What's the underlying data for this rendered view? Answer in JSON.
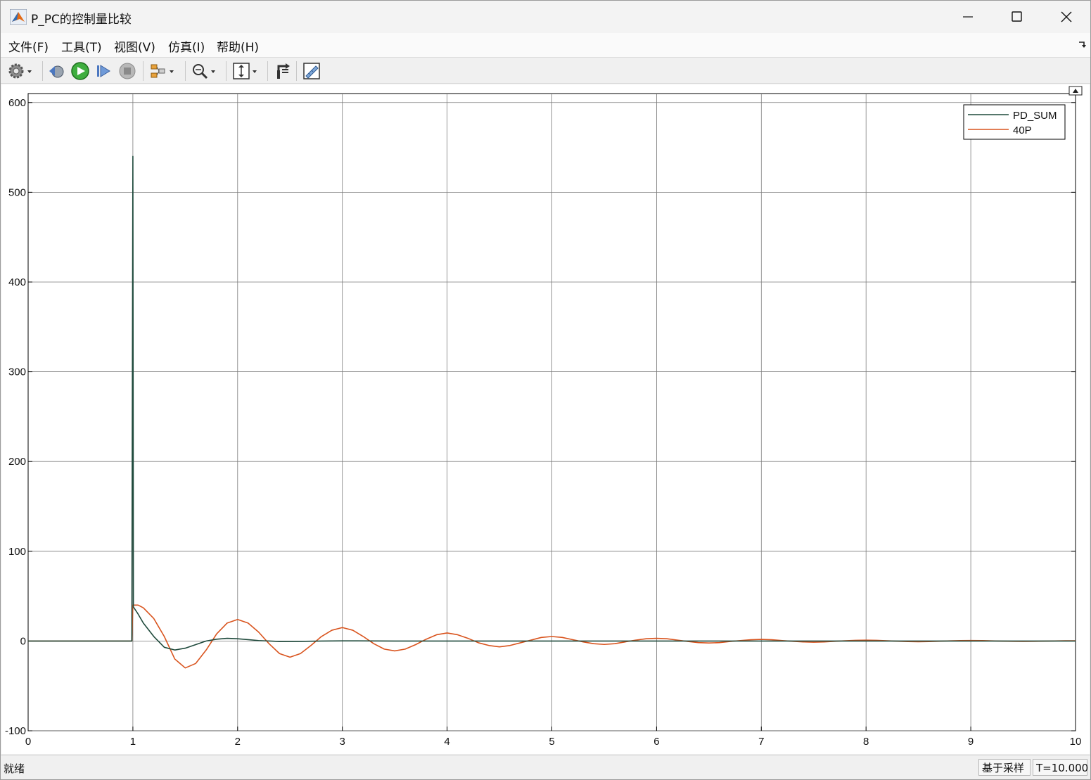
{
  "window": {
    "title": "P_PC的控制量比较",
    "minimize_glyph": "—",
    "maximize_glyph": "☐",
    "close_glyph": "✕"
  },
  "menu": {
    "items": [
      "文件(F)",
      "工具(T)",
      "视图(V)",
      "仿真(I)",
      "帮助(H)"
    ]
  },
  "toolbar": {
    "icons": [
      "settings-icon",
      "step-back-icon",
      "run-icon",
      "step-forward-icon",
      "stop-icon",
      "highlight-icon",
      "zoom-icon",
      "scale-axes-icon",
      "restore-view-icon",
      "measure-icon"
    ]
  },
  "status": {
    "left": "就绪",
    "mode": "基于采样",
    "time": "T=10.000"
  },
  "colors": {
    "pd_sum": "#1f4a3c",
    "p40": "#d9541e"
  },
  "chart_data": {
    "type": "line",
    "title": "",
    "xlabel": "",
    "ylabel": "",
    "xlim": [
      0,
      10
    ],
    "ylim": [
      -100,
      610
    ],
    "x_ticks": [
      0,
      1,
      2,
      3,
      4,
      5,
      6,
      7,
      8,
      9,
      10
    ],
    "y_ticks": [
      -100,
      0,
      100,
      200,
      300,
      400,
      500,
      600
    ],
    "grid": true,
    "legend_position": "top-right",
    "series": [
      {
        "name": "PD_SUM",
        "color": "#1f4a3c",
        "points": [
          [
            0,
            0
          ],
          [
            0.99,
            0
          ],
          [
            1.0,
            540
          ],
          [
            1.005,
            38
          ],
          [
            1.05,
            30
          ],
          [
            1.1,
            20
          ],
          [
            1.2,
            5
          ],
          [
            1.3,
            -7
          ],
          [
            1.4,
            -10
          ],
          [
            1.5,
            -8
          ],
          [
            1.6,
            -4
          ],
          [
            1.7,
            0
          ],
          [
            1.8,
            2
          ],
          [
            1.9,
            3
          ],
          [
            2.0,
            2.5
          ],
          [
            2.1,
            1.5
          ],
          [
            2.2,
            0.5
          ],
          [
            2.4,
            -0.5
          ],
          [
            2.6,
            -0.4
          ],
          [
            2.8,
            0
          ],
          [
            3.0,
            0.2
          ],
          [
            3.5,
            0
          ],
          [
            10,
            0
          ]
        ]
      },
      {
        "name": "40P",
        "color": "#d9541e",
        "points": [
          [
            0,
            0
          ],
          [
            0.99,
            0
          ],
          [
            1.0,
            40
          ],
          [
            1.05,
            40
          ],
          [
            1.1,
            37
          ],
          [
            1.2,
            25
          ],
          [
            1.3,
            5
          ],
          [
            1.4,
            -20
          ],
          [
            1.5,
            -30
          ],
          [
            1.6,
            -25
          ],
          [
            1.7,
            -10
          ],
          [
            1.8,
            8
          ],
          [
            1.9,
            20
          ],
          [
            2.0,
            24
          ],
          [
            2.1,
            20
          ],
          [
            2.2,
            10
          ],
          [
            2.3,
            -3
          ],
          [
            2.4,
            -14
          ],
          [
            2.5,
            -18
          ],
          [
            2.6,
            -14
          ],
          [
            2.7,
            -5
          ],
          [
            2.8,
            5
          ],
          [
            2.9,
            12
          ],
          [
            3.0,
            15
          ],
          [
            3.1,
            12
          ],
          [
            3.2,
            5
          ],
          [
            3.3,
            -3
          ],
          [
            3.4,
            -9
          ],
          [
            3.5,
            -11
          ],
          [
            3.6,
            -9
          ],
          [
            3.7,
            -4
          ],
          [
            3.8,
            2
          ],
          [
            3.9,
            7
          ],
          [
            4.0,
            9
          ],
          [
            4.1,
            7
          ],
          [
            4.2,
            3
          ],
          [
            4.3,
            -2
          ],
          [
            4.4,
            -5
          ],
          [
            4.5,
            -6.5
          ],
          [
            4.6,
            -5
          ],
          [
            4.7,
            -2
          ],
          [
            4.8,
            1
          ],
          [
            4.9,
            4
          ],
          [
            5.0,
            5
          ],
          [
            5.1,
            4
          ],
          [
            5.2,
            1.5
          ],
          [
            5.3,
            -1
          ],
          [
            5.4,
            -3
          ],
          [
            5.5,
            -3.8
          ],
          [
            5.6,
            -3
          ],
          [
            5.7,
            -1
          ],
          [
            5.8,
            1
          ],
          [
            5.9,
            2.5
          ],
          [
            6.0,
            3
          ],
          [
            6.1,
            2.5
          ],
          [
            6.2,
            1
          ],
          [
            6.3,
            -0.5
          ],
          [
            6.4,
            -1.8
          ],
          [
            6.5,
            -2.2
          ],
          [
            6.6,
            -1.8
          ],
          [
            6.7,
            -0.5
          ],
          [
            6.8,
            0.5
          ],
          [
            6.9,
            1.4
          ],
          [
            7.0,
            1.8
          ],
          [
            7.1,
            1.4
          ],
          [
            7.2,
            0.5
          ],
          [
            7.3,
            -0.3
          ],
          [
            7.4,
            -1
          ],
          [
            7.5,
            -1.3
          ],
          [
            7.6,
            -1
          ],
          [
            7.7,
            -0.3
          ],
          [
            7.8,
            0.3
          ],
          [
            7.9,
            0.8
          ],
          [
            8.0,
            1
          ],
          [
            8.1,
            0.8
          ],
          [
            8.2,
            0.3
          ],
          [
            8.3,
            -0.2
          ],
          [
            8.4,
            -0.6
          ],
          [
            8.5,
            -0.8
          ],
          [
            8.6,
            -0.6
          ],
          [
            8.7,
            -0.2
          ],
          [
            8.8,
            0.2
          ],
          [
            8.9,
            0.5
          ],
          [
            9.0,
            0.6
          ],
          [
            9.1,
            0.5
          ],
          [
            9.2,
            0.2
          ],
          [
            9.3,
            -0.1
          ],
          [
            9.4,
            -0.3
          ],
          [
            9.5,
            -0.4
          ],
          [
            9.6,
            -0.3
          ],
          [
            9.7,
            -0.1
          ],
          [
            9.8,
            0.1
          ],
          [
            9.9,
            0.3
          ],
          [
            10,
            0.3
          ]
        ]
      }
    ]
  }
}
